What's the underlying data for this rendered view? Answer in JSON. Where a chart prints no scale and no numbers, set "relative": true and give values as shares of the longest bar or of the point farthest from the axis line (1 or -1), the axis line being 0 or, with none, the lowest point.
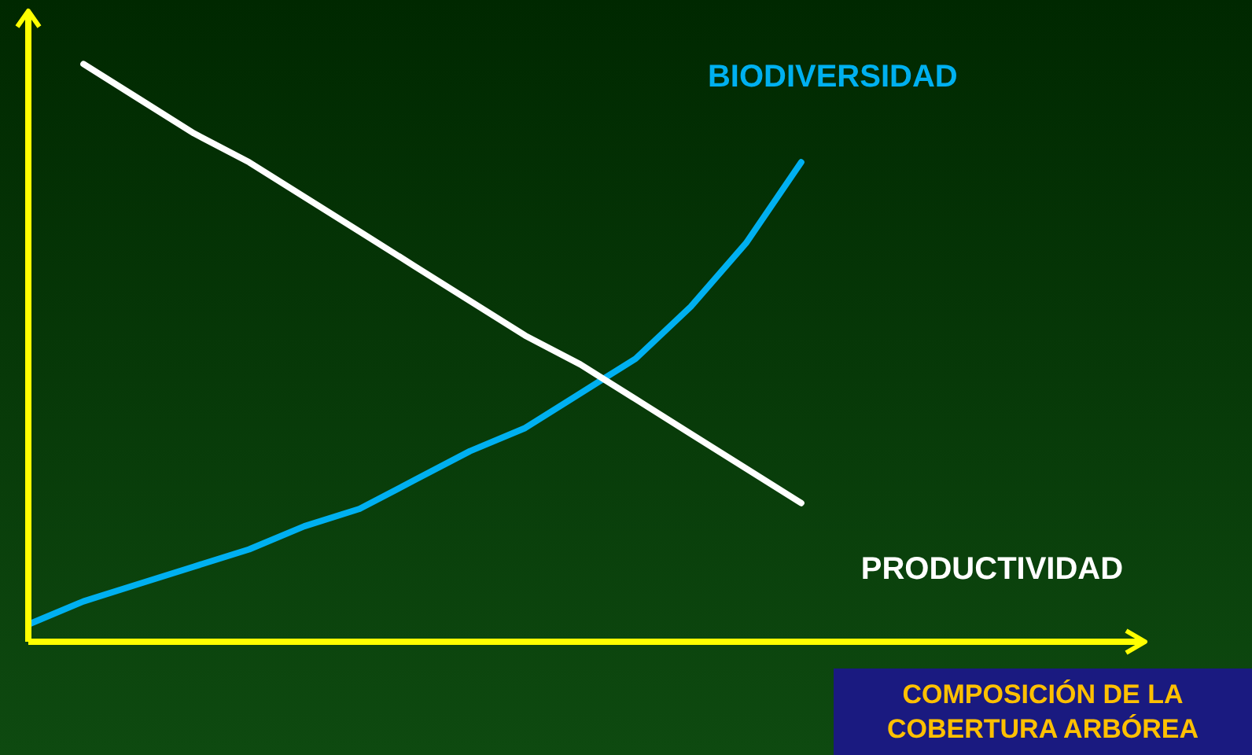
{
  "chart_data": {
    "type": "line",
    "relative": true,
    "marker": "none",
    "xlabel": "COMPOSICIÓN DE LA COBERTURA ARBÓREA",
    "categories": [
      null,
      null,
      null,
      null,
      null,
      null,
      null,
      null,
      null,
      null,
      null,
      null,
      null,
      null,
      null,
      null,
      null,
      null,
      null,
      null,
      null
    ],
    "series": [
      {
        "name": "PRODUCTIVIDAD",
        "color": "#ffffff",
        "values": [
          null,
          1,
          0.94,
          0.88,
          0.83,
          0.77,
          0.71,
          0.65,
          0.59,
          0.53,
          0.48,
          0.42,
          0.36,
          0.3,
          0.24,
          null,
          null,
          null,
          null,
          null,
          null
        ]
      },
      {
        "name": "BIODIVERSIDAD",
        "color": "#00b0f0",
        "values": [
          0.03,
          0.07,
          0.1,
          0.13,
          0.16,
          0.2,
          0.23,
          0.28,
          0.33,
          0.37,
          0.43,
          0.49,
          0.58,
          0.69,
          0.83,
          null,
          null,
          null,
          null,
          null,
          null
        ]
      }
    ]
  }
}
